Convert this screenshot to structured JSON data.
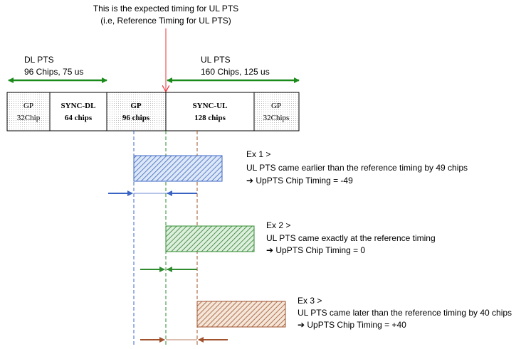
{
  "header": {
    "line1": "This is the expected timing for UL PTS",
    "line2": "(i.e, Reference Timing for UL PTS)"
  },
  "dl_pts": {
    "label": "DL PTS",
    "detail": "96 Chips, 75 us"
  },
  "ul_pts": {
    "label": "UL PTS",
    "detail": "160 Chips, 125 us"
  },
  "frame_blocks": [
    {
      "name": "GP",
      "sub": "32Chip"
    },
    {
      "name": "SYNC-DL",
      "sub": "64 chips"
    },
    {
      "name": "GP",
      "sub": "96 chips"
    },
    {
      "name": "SYNC-UL",
      "sub": "128 chips"
    },
    {
      "name": "GP",
      "sub": "32Chips"
    }
  ],
  "examples": [
    {
      "title": "Ex 1 >",
      "desc": "UL PTS came earlier than the reference timing by 49 chips",
      "result": "UpPTS Chip Timing = -49",
      "offset_chips": -49,
      "color": "#3a64c4"
    },
    {
      "title": "Ex 2 >",
      "desc": "UL PTS came exactly at the reference timing",
      "result": "UpPTS Chip Timing = 0",
      "offset_chips": 0,
      "color": "#2e8b2e"
    },
    {
      "title": "Ex 3 >",
      "desc": "UL PTS came later than the reference timing by 40 chips",
      "result": "UpPTS Chip Timing = +40",
      "offset_chips": 40,
      "color": "#a0522d"
    }
  ],
  "colors": {
    "reference_arrow": "#e8333a",
    "span_arrow": "#1a8a1a",
    "blue": "#3a64c4",
    "green": "#2e8b2e",
    "brown": "#a0522d",
    "block_fill_gray": "#f2f2f2"
  }
}
